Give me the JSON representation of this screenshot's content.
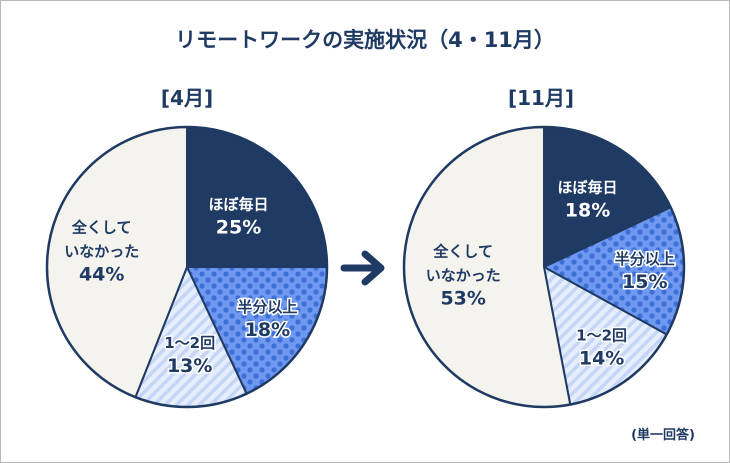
{
  "title": "リモートワークの実施状況（4・11月）",
  "note": "(単一回答)",
  "colors": {
    "title": "#1f3a63",
    "daily": "#1f3a63",
    "half": "#6f98f0",
    "few": "#d7e3fb",
    "none": "#f4f3ee",
    "outline": "#1f3a63",
    "arrow": "#1f3a63"
  },
  "chart_data": [
    {
      "type": "pie",
      "title": "[4月]",
      "slices": [
        {
          "label_lines": [
            "ほぼ毎日"
          ],
          "value": 25,
          "display": "25%",
          "pattern": "daily"
        },
        {
          "label_lines": [
            "半分以上"
          ],
          "value": 18,
          "display": "18%",
          "pattern": "half"
        },
        {
          "label_lines": [
            "1〜2回"
          ],
          "value": 13,
          "display": "13%",
          "pattern": "few"
        },
        {
          "label_lines": [
            "全くして",
            "いなかった"
          ],
          "value": 44,
          "display": "44%",
          "pattern": "none"
        }
      ]
    },
    {
      "type": "pie",
      "title": "[11月]",
      "slices": [
        {
          "label_lines": [
            "ほぼ毎日"
          ],
          "value": 18,
          "display": "18%",
          "pattern": "daily"
        },
        {
          "label_lines": [
            "半分以上"
          ],
          "value": 15,
          "display": "15%",
          "pattern": "half"
        },
        {
          "label_lines": [
            "1〜2回"
          ],
          "value": 14,
          "display": "14%",
          "pattern": "few"
        },
        {
          "label_lines": [
            "全くして",
            "いなかった"
          ],
          "value": 53,
          "display": "53%",
          "pattern": "none"
        }
      ]
    }
  ]
}
